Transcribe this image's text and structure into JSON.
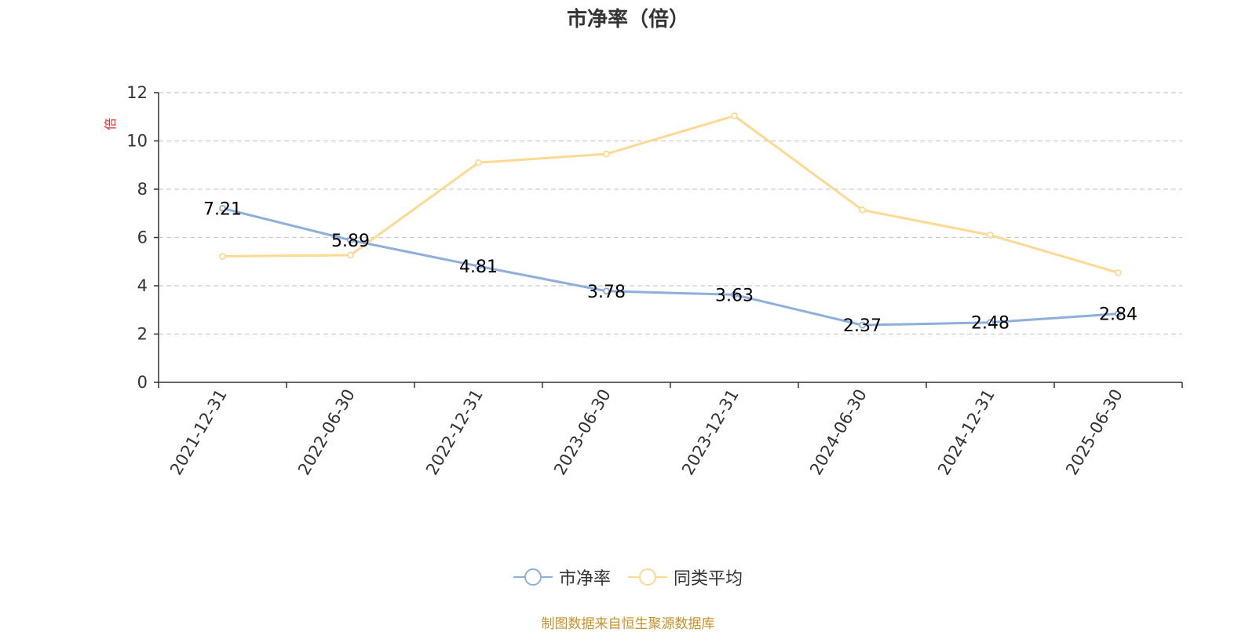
{
  "chart_data": {
    "type": "line",
    "title": "市净率（倍）",
    "ylabel": "倍",
    "categories": [
      "2021-12-31",
      "2022-06-30",
      "2022-12-31",
      "2023-06-30",
      "2023-12-31",
      "2024-06-30",
      "2024-12-31",
      "2025-06-30"
    ],
    "ylim": [
      0,
      12
    ],
    "yticks": [
      0,
      2,
      4,
      6,
      8,
      10,
      12
    ],
    "grid": true,
    "legend_position": "bottom-center",
    "series": [
      {
        "name": "市净率",
        "color": "#8eaedc",
        "values": [
          7.21,
          5.89,
          4.81,
          3.78,
          3.63,
          2.37,
          2.48,
          2.84
        ],
        "labels": [
          "7.21",
          "5.89",
          "4.81",
          "3.78",
          "3.63",
          "2.37",
          "2.48",
          "2.84"
        ]
      },
      {
        "name": "同类平均",
        "color": "#fdd992",
        "values": [
          5.22,
          5.27,
          9.1,
          9.46,
          11.04,
          7.14,
          6.1,
          4.54
        ]
      }
    ]
  },
  "source": "制图数据来自恒生聚源数据库"
}
